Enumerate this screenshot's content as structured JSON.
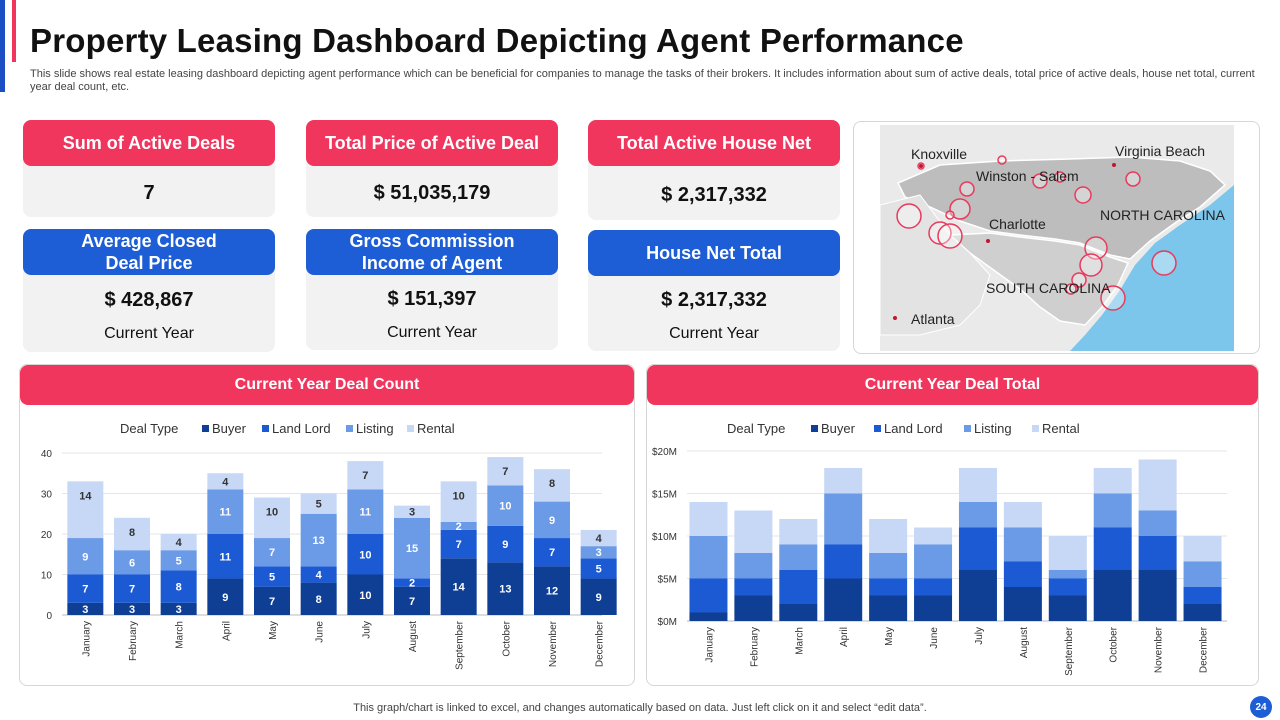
{
  "header": {
    "title": "Property Leasing Dashboard Depicting Agent Performance",
    "subtitle": "This slide shows real estate leasing dashboard depicting agent performance which can be beneficial for companies to manage the tasks of their brokers. It includes information about sum of active deals, total price of active deals, house net total, current year  deal count, etc."
  },
  "kpis": {
    "active_deals": {
      "label": "Sum of Active Deals",
      "value": "7"
    },
    "total_price": {
      "label": "Total Price of Active Deal",
      "value": "$ 51,035,179"
    },
    "house_net": {
      "label": "Total Active House Net",
      "value": "$ 2,317,332"
    },
    "avg_closed": {
      "label": "Average Closed Deal Price",
      "value": "$ 428,867",
      "sub": "Current Year"
    },
    "gci": {
      "label": "Gross Commission Income of Agent",
      "value": "$ 151,397",
      "sub": "Current Year"
    },
    "house_net_total": {
      "label": "House Net Total",
      "value": "$ 2,317,332",
      "sub": "Current Year"
    }
  },
  "map": {
    "labels": [
      "Knoxville",
      "Virginia Beach",
      "Winston - Salem",
      "Charlotte",
      "NORTH CAROLINA",
      "SOUTH CAROLINA",
      "Atlanta"
    ]
  },
  "colors": {
    "buyer": "#0f3f95",
    "landlord": "#1c5ad4",
    "listing": "#6b9ae6",
    "rental": "#c6d8f5",
    "accent_red": "#f1365e",
    "accent_blue": "#1d5dd6"
  },
  "chart_data": [
    {
      "type": "bar",
      "stacked": true,
      "title": "Current Year Deal Count",
      "legend_title": "Deal Type",
      "categories": [
        "January",
        "February",
        "March",
        "April",
        "May",
        "June",
        "July",
        "August",
        "September",
        "October",
        "November",
        "December"
      ],
      "series": [
        {
          "name": "Buyer",
          "values": [
            3,
            3,
            3,
            9,
            7,
            8,
            10,
            7,
            14,
            13,
            12,
            9
          ]
        },
        {
          "name": "Land Lord",
          "values": [
            7,
            7,
            8,
            11,
            5,
            4,
            10,
            2,
            7,
            9,
            7,
            5
          ]
        },
        {
          "name": "Listing",
          "values": [
            9,
            6,
            5,
            11,
            7,
            13,
            11,
            15,
            2,
            10,
            9,
            3
          ]
        },
        {
          "name": "Rental",
          "values": [
            14,
            8,
            4,
            4,
            10,
            5,
            7,
            3,
            10,
            7,
            8,
            4
          ]
        }
      ],
      "yticks": [
        "0",
        "10",
        "20",
        "30",
        "40"
      ],
      "ylim": [
        0,
        40
      ]
    },
    {
      "type": "bar",
      "stacked": true,
      "title": "Current Year Deal Total",
      "legend_title": "Deal Type",
      "categories": [
        "January",
        "February",
        "March",
        "April",
        "May",
        "June",
        "July",
        "August",
        "September",
        "October",
        "November",
        "December"
      ],
      "series": [
        {
          "name": "Buyer",
          "values": [
            1,
            3,
            2,
            5,
            3,
            3,
            6,
            4,
            3,
            6,
            6,
            2
          ]
        },
        {
          "name": "Land Lord",
          "values": [
            4,
            2,
            4,
            4,
            2,
            2,
            5,
            3,
            2,
            5,
            4,
            2
          ]
        },
        {
          "name": "Listing",
          "values": [
            5,
            3,
            3,
            6,
            3,
            4,
            3,
            4,
            1,
            4,
            3,
            3
          ]
        },
        {
          "name": "Rental",
          "values": [
            4,
            5,
            3,
            3,
            4,
            2,
            4,
            3,
            4,
            3,
            6,
            3
          ]
        }
      ],
      "yticks": [
        "$0M",
        "$5M",
        "$10M",
        "$15M",
        "$20M"
      ],
      "ylim": [
        0,
        20
      ]
    }
  ],
  "footer": {
    "note": "This graph/chart is linked to excel,  and changes automatically based on data. Just left click on it and select “edit data”.",
    "page": "24"
  }
}
